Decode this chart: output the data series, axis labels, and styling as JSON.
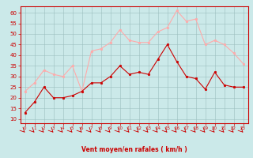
{
  "x": [
    0,
    1,
    2,
    3,
    4,
    5,
    6,
    7,
    8,
    9,
    10,
    11,
    12,
    13,
    14,
    15,
    16,
    17,
    18,
    19,
    20,
    21,
    22,
    23
  ],
  "wind_avg": [
    13,
    18,
    25,
    20,
    20,
    21,
    23,
    27,
    27,
    30,
    35,
    31,
    32,
    31,
    38,
    45,
    37,
    30,
    29,
    24,
    32,
    26,
    25,
    25
  ],
  "wind_gust": [
    23,
    27,
    33,
    31,
    30,
    35,
    23,
    42,
    43,
    46,
    52,
    47,
    46,
    46,
    51,
    53,
    61,
    56,
    57,
    45,
    47,
    45,
    41,
    36
  ],
  "bg_color": "#cbe9e9",
  "grid_color": "#9bbfbf",
  "line_avg_color": "#cc0000",
  "line_gust_color": "#ffaaaa",
  "xlabel": "Vent moyen/en rafales ( km/h )",
  "xlabel_color": "#cc0000",
  "tick_color": "#cc0000",
  "yticks": [
    10,
    15,
    20,
    25,
    30,
    35,
    40,
    45,
    50,
    55,
    60
  ],
  "ylim": [
    8,
    63
  ],
  "xlim": [
    -0.5,
    23.5
  ],
  "figwidth": 3.2,
  "figheight": 2.0,
  "dpi": 100
}
